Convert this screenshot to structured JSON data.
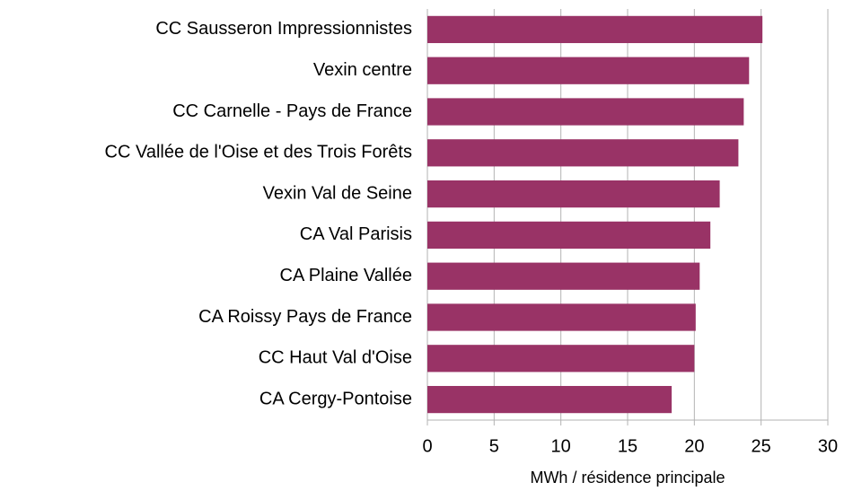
{
  "chart_data": {
    "type": "bar",
    "orientation": "horizontal",
    "categories": [
      "CC Sausseron Impressionnistes",
      "Vexin centre",
      "CC Carnelle - Pays de France",
      "CC Vallée de l'Oise et des Trois Forêts",
      "Vexin Val de Seine",
      "CA Val Parisis",
      "CA Plaine Vallée",
      "CA Roissy Pays de France",
      "CC Haut Val d'Oise",
      "CA Cergy-Pontoise"
    ],
    "values": [
      25.1,
      24.1,
      23.7,
      23.3,
      21.9,
      21.2,
      20.4,
      20.1,
      20.0,
      18.3
    ],
    "color": "#993366",
    "xlabel": "MWh / résidence principale",
    "xlim": [
      0,
      30
    ],
    "xticks": [
      0,
      5,
      10,
      15,
      20,
      25,
      30
    ],
    "grid": true
  }
}
